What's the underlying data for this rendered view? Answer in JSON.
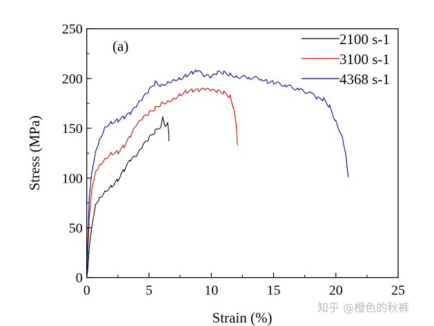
{
  "chart_data": {
    "type": "line",
    "title": "",
    "annotation": "(a)",
    "xlabel": "Strain (%)",
    "ylabel": "Stress (MPa)",
    "xlim": [
      0,
      25
    ],
    "ylim": [
      0,
      250
    ],
    "xticks": [
      0,
      5,
      10,
      15,
      20,
      25
    ],
    "yticks": [
      0,
      50,
      100,
      150,
      200,
      250
    ],
    "grid": false,
    "legend_position": "top-right",
    "series": [
      {
        "name": "2100 s-1",
        "color": "#000000",
        "x": [
          0,
          0.1,
          0.2,
          0.4,
          0.7,
          1,
          1.5,
          2,
          2.5,
          3,
          3.5,
          4,
          4.5,
          5,
          5.5,
          6,
          6.1,
          6.3,
          6.5,
          6.6,
          6.6
        ],
        "y": [
          0,
          10,
          30,
          50,
          72,
          80,
          87,
          92,
          98,
          108,
          118,
          122,
          132,
          140,
          147,
          153,
          161,
          152,
          157,
          145,
          137
        ]
      },
      {
        "name": "3100 s-1",
        "color": "#e00000",
        "x": [
          0,
          0.1,
          0.2,
          0.4,
          0.7,
          1,
          1.5,
          2,
          2.5,
          3,
          3.5,
          4,
          4.5,
          5,
          5.5,
          6,
          6.5,
          7,
          7.5,
          8,
          8.5,
          9,
          9.5,
          10,
          10.5,
          11,
          11.5,
          11.8,
          12,
          12.1
        ],
        "y": [
          0,
          30,
          60,
          88,
          105,
          113,
          120,
          125,
          126,
          132,
          142,
          153,
          160,
          165,
          170,
          175,
          177,
          180,
          184,
          187,
          188,
          188,
          189,
          188,
          187,
          186,
          182,
          170,
          155,
          133
        ]
      },
      {
        "name": "4368 s-1",
        "color": "#0000b0",
        "x": [
          0,
          0.1,
          0.2,
          0.4,
          0.7,
          1,
          1.5,
          2,
          2.5,
          3,
          3.5,
          4,
          4.5,
          5,
          5.5,
          6,
          6.5,
          7,
          7.5,
          8,
          8.5,
          8.8,
          9.5,
          10,
          10.5,
          11,
          11.5,
          12,
          13,
          14,
          14.5,
          15,
          16,
          17,
          18,
          18.5,
          19,
          19.5,
          20,
          20.5,
          20.8,
          21
        ],
        "y": [
          0,
          40,
          80,
          105,
          125,
          138,
          152,
          156,
          158,
          161,
          165,
          172,
          180,
          188,
          196,
          193,
          196,
          199,
          200,
          203,
          206,
          208,
          203,
          201,
          206,
          206,
          204,
          202,
          201,
          200,
          197,
          196,
          193,
          189,
          185,
          180,
          179,
          172,
          157,
          142,
          125,
          101
        ]
      }
    ]
  },
  "watermark": "知乎 @橙色的秋裤"
}
